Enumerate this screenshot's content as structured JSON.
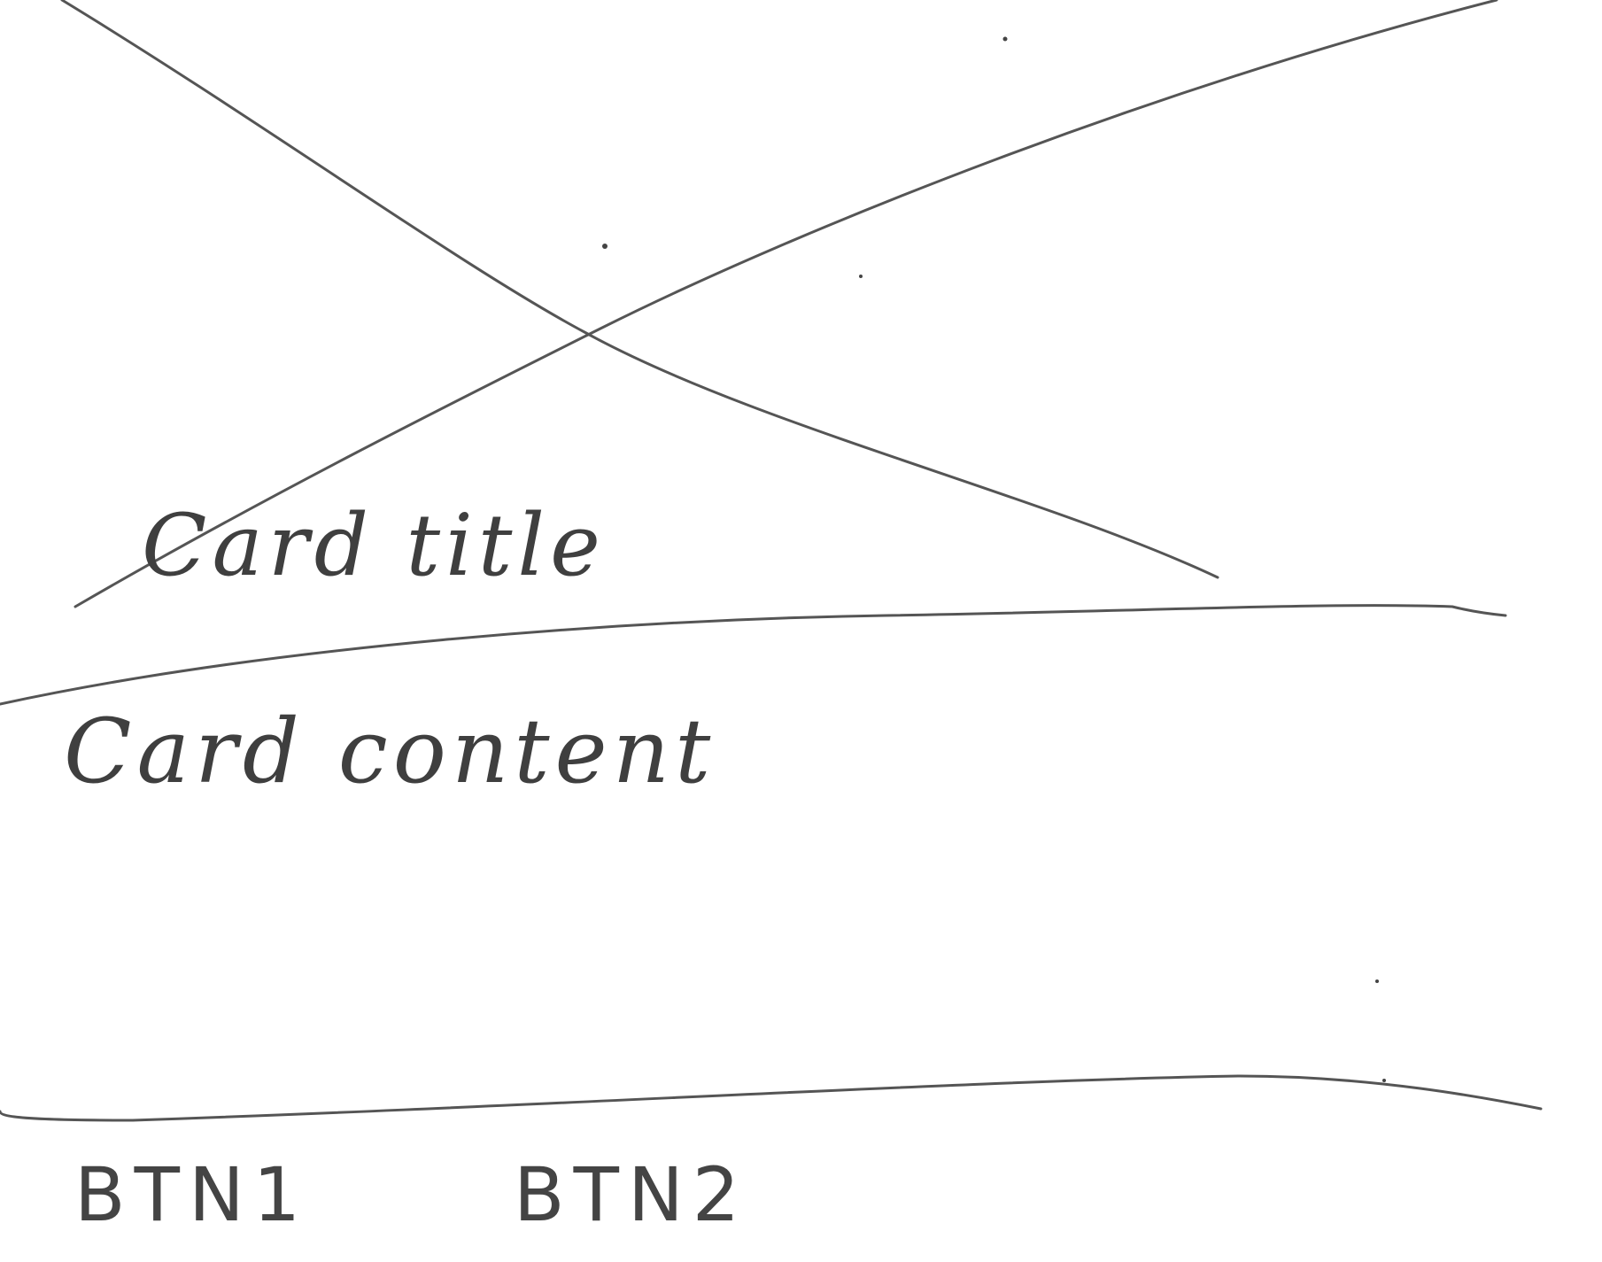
{
  "card": {
    "title": "Card title",
    "content": "Card content"
  },
  "actions": {
    "btn1_label": "BTN1",
    "btn2_label": "BTN2"
  }
}
